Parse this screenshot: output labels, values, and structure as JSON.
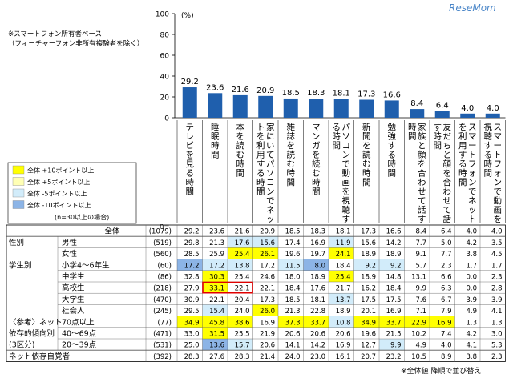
{
  "watermark": "ReseMom",
  "note_lines": [
    "※スマートフォン所有者ベース",
    "（フィーチャーフォン非所有複験者を除く）"
  ],
  "footnote": "※全体値 降順で並び替え",
  "legend": [
    {
      "label": "全体 +10ポイント以上",
      "color": "#ffff00"
    },
    {
      "label": "全体 +5ポイント以上",
      "color": "#ffffb4"
    },
    {
      "label": "全体 -5ポイント以上",
      "color": "#d2ecfa"
    },
    {
      "label": "全体 -10ポイント以上",
      "color": "#8cb4e6"
    }
  ],
  "legend_note": "(n=30以上の場合)",
  "n_label": "n=",
  "colors": {
    "bar": "#1f5fad",
    "red_box": "#e00000",
    "grid": "#999999"
  },
  "chart_data": {
    "type": "bar",
    "unit": "(%)",
    "yticks": [
      "0",
      "20",
      "40",
      "60",
      "80",
      "100"
    ],
    "ylim": [
      0,
      100
    ],
    "categories": [
      "テレビを見る時間",
      "睡眠時間",
      "本を読む時間",
      "家にいてパソコンでネットを利用する時間",
      "雑誌を読む時間",
      "マンガを読む時間",
      "パソコンで動画を視聴する時間",
      "新聞を読む時間",
      "勉強する時間",
      "家族と顔を合わせて話す時間",
      "友だちと顔を合わせて話す時間",
      "スマートフォンでネットを利用する時間",
      "スマートフォンで動画を視聴する時間"
    ],
    "values": [
      29.2,
      23.6,
      21.6,
      20.9,
      18.5,
      18.3,
      18.1,
      17.3,
      16.6,
      8.4,
      6.4,
      4.0,
      4.0
    ],
    "labels": [
      "29.2",
      "23.6",
      "21.6",
      "20.9",
      "18.5",
      "18.3",
      "18.1",
      "17.3",
      "16.6",
      "8.4",
      "6.4",
      "4.0",
      "4.0"
    ]
  },
  "table": [
    {
      "group": "",
      "label": "全体",
      "n": "(1079)",
      "values": [
        "29.2",
        "23.6",
        "21.6",
        "20.9",
        "18.5",
        "18.3",
        "18.1",
        "17.3",
        "16.6",
        "8.4",
        "6.4",
        "4.0",
        "4.0"
      ],
      "hl": [
        "",
        "",
        "",
        "",
        "",
        "",
        "",
        "",
        "",
        "",
        "",
        "",
        ""
      ]
    },
    {
      "group": "性別",
      "label": "男性",
      "n": "(519)",
      "values": [
        "29.8",
        "21.3",
        "17.6",
        "15.6",
        "17.4",
        "16.9",
        "11.9",
        "15.6",
        "14.2",
        "7.7",
        "5.0",
        "4.2",
        "3.5"
      ],
      "hl": [
        "",
        "",
        "c",
        "c",
        "",
        "",
        "c",
        "",
        "",
        "",
        "",
        "",
        ""
      ]
    },
    {
      "group": "",
      "label": "女性",
      "n": "(560)",
      "values": [
        "28.5",
        "25.9",
        "25.4",
        "26.1",
        "19.6",
        "19.7",
        "24.1",
        "18.9",
        "18.9",
        "9.1",
        "7.7",
        "3.8",
        "4.5"
      ],
      "hl": [
        "",
        "",
        "y",
        "y",
        "",
        "",
        "y",
        "",
        "",
        "",
        "",
        "",
        ""
      ]
    },
    {
      "group": "学生別",
      "label": "小学4〜6年生",
      "n": "(60)",
      "values": [
        "17.2",
        "17.2",
        "13.8",
        "17.2",
        "11.5",
        "8.0",
        "18.4",
        "9.2",
        "9.2",
        "5.7",
        "2.3",
        "1.7",
        "1.7"
      ],
      "hl": [
        "b",
        "c",
        "c",
        "",
        "c",
        "b",
        "",
        "c",
        "c",
        "",
        "",
        "",
        ""
      ]
    },
    {
      "group": "",
      "label": "中学生",
      "n": "(86)",
      "values": [
        "32.8",
        "30.3",
        "25.4",
        "24.6",
        "18.0",
        "18.9",
        "25.4",
        "18.9",
        "14.8",
        "13.1",
        "6.6",
        "0.0",
        "2.3"
      ],
      "hl": [
        "",
        "y",
        "",
        "",
        "",
        "",
        "y",
        "",
        "",
        "",
        "",
        "",
        ""
      ]
    },
    {
      "group": "",
      "label": "高校生",
      "n": "(218)",
      "values": [
        "27.9",
        "33.1",
        "22.1",
        "22.1",
        "18.4",
        "17.6",
        "21.7",
        "16.2",
        "18.4",
        "9.9",
        "6.3",
        "0.0",
        "2.8"
      ],
      "hl": [
        "",
        "y",
        "",
        "",
        "",
        "",
        "",
        "",
        "",
        "",
        "",
        "",
        ""
      ]
    },
    {
      "group": "",
      "label": "大学生",
      "n": "(470)",
      "values": [
        "30.9",
        "22.1",
        "20.4",
        "17.3",
        "18.5",
        "18.1",
        "13.7",
        "17.5",
        "17.5",
        "7.6",
        "6.7",
        "3.9",
        "3.9"
      ],
      "hl": [
        "",
        "",
        "",
        "",
        "",
        "",
        "c",
        "",
        "",
        "",
        "",
        "",
        ""
      ]
    },
    {
      "group": "",
      "label": "社会人",
      "n": "(245)",
      "values": [
        "29.5",
        "15.4",
        "24.0",
        "26.0",
        "21.3",
        "22.8",
        "18.9",
        "20.1",
        "16.9",
        "7.1",
        "7.9",
        "4.9",
        "4.1"
      ],
      "hl": [
        "",
        "c",
        "",
        "y",
        "",
        "",
        "",
        "",
        "",
        "",
        "",
        "",
        ""
      ]
    },
    {
      "group": "〈参考〉ネット依存的傾向別(3区分)",
      "label": "70点以上",
      "n": "(77)",
      "values": [
        "34.9",
        "45.8",
        "38.6",
        "16.9",
        "37.3",
        "33.7",
        "10.8",
        "34.9",
        "33.7",
        "22.9",
        "16.9",
        "1.3",
        "1.3"
      ],
      "hl": [
        "y",
        "y",
        "y",
        "",
        "y",
        "y",
        "c",
        "y",
        "y",
        "y",
        "y",
        "",
        ""
      ]
    },
    {
      "group": "",
      "label": "40〜69点",
      "n": "(471)",
      "values": [
        "33.0",
        "31.5",
        "25.5",
        "21.9",
        "20.6",
        "20.6",
        "20.6",
        "19.6",
        "21.5",
        "10.2",
        "7.4",
        "4.2",
        "3.0"
      ],
      "hl": [
        "",
        "y",
        "",
        "",
        "",
        "",
        "",
        "",
        "",
        "",
        "",
        "",
        ""
      ]
    },
    {
      "group": "",
      "label": "20〜39点",
      "n": "(531)",
      "values": [
        "25.0",
        "13.6",
        "15.7",
        "20.6",
        "14.1",
        "14.2",
        "16.9",
        "12.7",
        "9.9",
        "4.9",
        "4.0",
        "4.1",
        "5.3"
      ],
      "hl": [
        "",
        "b",
        "c",
        "",
        "",
        "",
        "",
        "",
        "c",
        "",
        "",
        "",
        ""
      ]
    },
    {
      "group": "ネット依存自覚者",
      "label": "",
      "n": "(392)",
      "values": [
        "28.3",
        "27.6",
        "28.3",
        "21.4",
        "24.0",
        "23.0",
        "16.1",
        "20.7",
        "23.2",
        "10.5",
        "8.9",
        "3.8",
        "2.3"
      ],
      "hl": [
        "",
        "",
        "",
        "",
        "",
        "",
        "",
        "",
        "",
        "",
        "",
        "",
        ""
      ]
    }
  ]
}
